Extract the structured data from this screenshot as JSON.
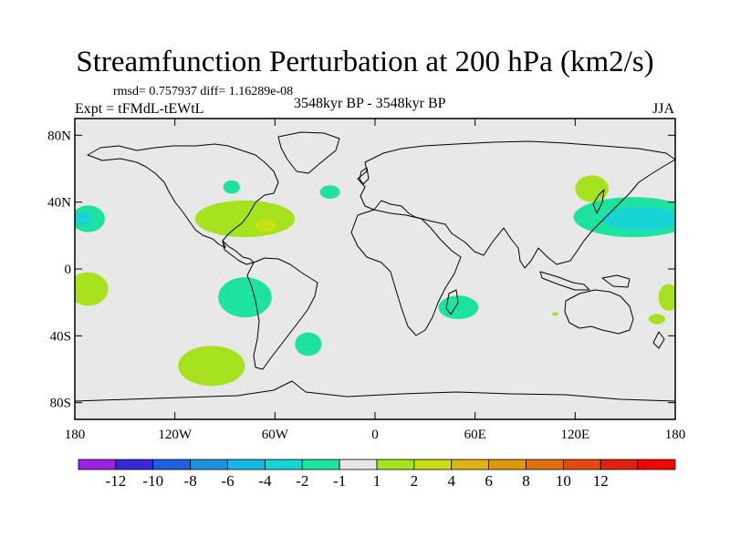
{
  "title": "Streamfunction Perturbation at 200 hPa (km2/s)",
  "stats": "rmsd= 0.757937 diff= 1.16289e-08",
  "experiment": "Expt = tFMdL-tEWtL",
  "period": "3548kyr BP - 3548kyr BP",
  "season": "JJA",
  "axes": {
    "y_ticks": [
      {
        "label": "80N",
        "value": 80
      },
      {
        "label": "40N",
        "value": 40
      },
      {
        "label": "0",
        "value": 0
      },
      {
        "label": "40S",
        "value": -40
      },
      {
        "label": "80S",
        "value": -80
      }
    ],
    "x_ticks": [
      {
        "label": "180",
        "value": -180
      },
      {
        "label": "120W",
        "value": -120
      },
      {
        "label": "60W",
        "value": -60
      },
      {
        "label": "0",
        "value": 0
      },
      {
        "label": "60E",
        "value": 60
      },
      {
        "label": "120E",
        "value": 120
      },
      {
        "label": "180",
        "value": 180
      }
    ],
    "lon_range": [
      -180,
      180
    ],
    "lat_range": [
      -90,
      90
    ]
  },
  "colorbar": {
    "colors": [
      "#9a22e0",
      "#3a28d8",
      "#1f60e0",
      "#1e92e0",
      "#16b8e4",
      "#18d4d4",
      "#1ee2a0",
      "#e6e6e6",
      "#a6e21e",
      "#c8e014",
      "#e0b414",
      "#e09810",
      "#e07010",
      "#e04c10",
      "#e02010",
      "#f00808"
    ],
    "labels": [
      "-12",
      "-10",
      "-8",
      "-6",
      "-4",
      "-2",
      "-1",
      "1",
      "2",
      "4",
      "6",
      "8",
      "10",
      "12"
    ]
  },
  "anomalies": [
    {
      "lon": -172,
      "lat": 30,
      "rx": 10,
      "ry": 8,
      "color": "#1ee2a0"
    },
    {
      "lon": -175,
      "lat": 30,
      "rx": 5,
      "ry": 4,
      "color": "#18d4d4"
    },
    {
      "lon": -78,
      "lat": 30,
      "rx": 30,
      "ry": 11,
      "color": "#a6e21e"
    },
    {
      "lon": -66,
      "lat": 26,
      "rx": 6,
      "ry": 4,
      "color": "#c8e014"
    },
    {
      "lon": -86,
      "lat": 49,
      "rx": 5,
      "ry": 4,
      "color": "#1ee2a0"
    },
    {
      "lon": -27,
      "lat": 46,
      "rx": 6,
      "ry": 4,
      "color": "#1ee2a0"
    },
    {
      "lon": -172,
      "lat": -12,
      "rx": 12,
      "ry": 10,
      "color": "#a6e21e"
    },
    {
      "lon": -78,
      "lat": -17,
      "rx": 16,
      "ry": 12,
      "color": "#1ee2a0"
    },
    {
      "lon": -98,
      "lat": -58,
      "rx": 20,
      "ry": 12,
      "color": "#a6e21e"
    },
    {
      "lon": -40,
      "lat": -45,
      "rx": 8,
      "ry": 7,
      "color": "#1ee2a0"
    },
    {
      "lon": 50,
      "lat": -23,
      "rx": 12,
      "ry": 7,
      "color": "#1ee2a0"
    },
    {
      "lon": 130,
      "lat": 48,
      "rx": 10,
      "ry": 8,
      "color": "#a6e21e"
    },
    {
      "lon": 155,
      "lat": 31,
      "rx": 36,
      "ry": 12,
      "color": "#1ee2a0"
    },
    {
      "lon": 160,
      "lat": 30,
      "rx": 24,
      "ry": 7,
      "color": "#18d4d4"
    },
    {
      "lon": 176,
      "lat": -17,
      "rx": 6,
      "ry": 8,
      "color": "#a6e21e"
    },
    {
      "lon": 169,
      "lat": -30,
      "rx": 5,
      "ry": 3,
      "color": "#a6e21e"
    },
    {
      "lon": 108,
      "lat": -27,
      "rx": 2,
      "ry": 1,
      "color": "#a6e21e"
    }
  ]
}
